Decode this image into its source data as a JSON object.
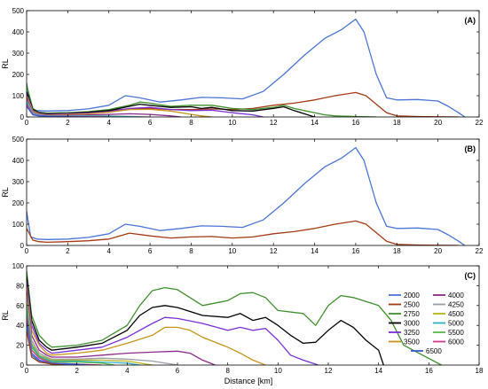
{
  "figure": {
    "xlabel": "Distance [km]"
  },
  "legend": {
    "entries": [
      {
        "label": "2000",
        "color": "#4a75d6"
      },
      {
        "label": "2500",
        "color": "#a33a14"
      },
      {
        "label": "2750",
        "color": "#3f8f2d"
      },
      {
        "label": "3000",
        "color": "#000000"
      },
      {
        "label": "3250",
        "color": "#7a2fd6"
      },
      {
        "label": "3500",
        "color": "#c8941a"
      },
      {
        "label": "4000",
        "color": "#8a2a8a"
      },
      {
        "label": "4250",
        "color": "#9aa0a6"
      },
      {
        "label": "4500",
        "color": "#b9b21e"
      },
      {
        "label": "5000",
        "color": "#30b0c4"
      },
      {
        "label": "5500",
        "color": "#57b84a"
      },
      {
        "label": "6000",
        "color": "#d13a8a"
      },
      {
        "label": "6500",
        "color": "#3a5bd1"
      }
    ]
  },
  "chart_data": [
    {
      "type": "line",
      "panel_label": "(A)",
      "ylabel": "RL",
      "xlim": [
        0,
        22
      ],
      "ylim": [
        0,
        500
      ],
      "xticks": [
        0,
        2,
        4,
        6,
        8,
        10,
        12,
        14,
        16,
        18,
        20,
        22
      ],
      "yticks": [
        0,
        100,
        200,
        300,
        400,
        500
      ],
      "series": [
        {
          "color": "#4a75d6",
          "x": [
            0,
            0.2,
            0.5,
            1,
            2,
            3,
            4,
            4.8,
            5.5,
            6.5,
            7.5,
            8.5,
            9.5,
            10.5,
            11.5,
            12.5,
            13.5,
            14.5,
            15.3,
            16,
            16.4,
            17,
            17.5,
            18,
            19,
            20,
            20.5,
            21,
            21.3
          ],
          "y": [
            160,
            40,
            30,
            28,
            30,
            38,
            55,
            100,
            90,
            70,
            80,
            92,
            90,
            85,
            120,
            200,
            290,
            370,
            410,
            460,
            400,
            200,
            90,
            80,
            82,
            75,
            50,
            20,
            0
          ]
        },
        {
          "color": "#a33a14",
          "x": [
            0,
            0.3,
            0.6,
            1,
            2,
            3,
            4,
            5,
            6,
            7,
            8,
            9,
            10,
            11,
            12,
            13,
            14,
            15,
            16,
            16.5,
            17,
            17.5,
            18,
            19,
            20,
            21
          ],
          "y": [
            80,
            25,
            18,
            15,
            18,
            22,
            30,
            38,
            40,
            35,
            35,
            38,
            35,
            40,
            55,
            65,
            80,
            100,
            115,
            100,
            60,
            20,
            5,
            2,
            1,
            0
          ]
        },
        {
          "color": "#3f8f2d",
          "x": [
            0,
            0.3,
            0.6,
            1,
            2,
            3,
            4,
            5,
            5.5,
            6,
            7,
            8,
            9,
            10,
            11,
            12,
            12.5,
            13,
            14,
            14.5,
            15,
            16,
            17
          ],
          "y": [
            150,
            40,
            22,
            18,
            20,
            25,
            35,
            55,
            70,
            65,
            50,
            55,
            55,
            40,
            35,
            45,
            55,
            40,
            20,
            10,
            5,
            2,
            0
          ]
        },
        {
          "color": "#000000",
          "x": [
            0,
            0.3,
            0.6,
            1,
            2,
            3,
            4,
            5,
            5.5,
            6,
            7,
            8,
            8.5,
            9,
            10,
            11,
            12,
            12.5,
            13,
            13.5,
            14
          ],
          "y": [
            120,
            35,
            20,
            15,
            17,
            22,
            30,
            50,
            60,
            55,
            45,
            48,
            40,
            45,
            30,
            28,
            40,
            48,
            30,
            15,
            0
          ]
        },
        {
          "color": "#7a2fd6",
          "x": [
            0,
            0.3,
            0.6,
            1,
            2,
            3,
            4,
            5,
            6,
            7,
            8,
            9,
            10,
            11,
            11.5
          ],
          "y": [
            110,
            30,
            17,
            12,
            15,
            18,
            25,
            40,
            45,
            35,
            30,
            32,
            20,
            10,
            0
          ]
        },
        {
          "color": "#c8941a",
          "x": [
            0,
            0.3,
            0.6,
            1,
            2,
            3,
            4,
            5,
            6,
            7,
            8,
            8.5,
            9
          ],
          "y": [
            100,
            28,
            15,
            10,
            12,
            15,
            22,
            35,
            36,
            28,
            12,
            5,
            0
          ]
        },
        {
          "color": "#8a2a8a",
          "x": [
            0,
            0.3,
            0.6,
            1,
            2,
            3,
            4,
            5,
            6,
            7,
            7.5
          ],
          "y": [
            90,
            22,
            12,
            8,
            8,
            10,
            12,
            15,
            12,
            5,
            0
          ]
        },
        {
          "color": "#9aa0a6",
          "x": [
            0,
            0.3,
            0.6,
            1,
            2,
            3,
            4,
            5,
            6
          ],
          "y": [
            80,
            20,
            10,
            6,
            6,
            6,
            5,
            3,
            0
          ]
        },
        {
          "color": "#30b0c4",
          "x": [
            0,
            0.3,
            0.6,
            1,
            2,
            3,
            4,
            5,
            5.5
          ],
          "y": [
            70,
            15,
            8,
            5,
            5,
            4,
            3,
            1,
            0
          ]
        },
        {
          "color": "#d13a8a",
          "x": [
            0,
            0.3,
            0.6,
            1,
            2,
            3,
            4
          ],
          "y": [
            60,
            12,
            6,
            4,
            3,
            1,
            0
          ]
        },
        {
          "color": "#3a5bd1",
          "x": [
            0,
            0.3,
            0.6,
            1,
            2,
            3
          ],
          "y": [
            50,
            10,
            5,
            3,
            1,
            0
          ]
        }
      ]
    },
    {
      "type": "line",
      "panel_label": "(B)",
      "ylabel": "RL",
      "xlim": [
        0,
        22
      ],
      "ylim": [
        0,
        500
      ],
      "xticks": [
        0,
        2,
        4,
        6,
        8,
        10,
        12,
        14,
        16,
        18,
        20,
        22
      ],
      "yticks": [
        0,
        100,
        200,
        300,
        400,
        500
      ],
      "series": [
        {
          "color": "#4a75d6",
          "x": [
            0,
            0.2,
            0.5,
            1,
            2,
            3,
            4,
            4.8,
            5.5,
            6.5,
            7.5,
            8.5,
            9.5,
            10.5,
            11.5,
            12.5,
            13.5,
            14.5,
            15.3,
            16,
            16.4,
            17,
            17.5,
            18,
            19,
            20,
            20.5,
            21,
            21.3
          ],
          "y": [
            160,
            40,
            30,
            28,
            30,
            38,
            55,
            100,
            90,
            70,
            80,
            92,
            90,
            85,
            120,
            200,
            290,
            370,
            410,
            460,
            400,
            200,
            90,
            80,
            82,
            75,
            50,
            20,
            0
          ]
        },
        {
          "color": "#a33a14",
          "x": [
            0,
            0.3,
            0.6,
            1,
            2,
            3,
            4,
            5,
            6,
            7,
            8,
            9,
            10,
            11,
            12,
            13,
            14,
            15,
            16,
            16.5,
            17,
            17.5,
            18,
            19,
            20,
            21
          ],
          "y": [
            80,
            25,
            18,
            15,
            18,
            22,
            30,
            58,
            45,
            35,
            40,
            42,
            35,
            40,
            55,
            65,
            80,
            100,
            115,
            100,
            60,
            20,
            5,
            2,
            1,
            0
          ]
        }
      ]
    },
    {
      "type": "line",
      "panel_label": "(C)",
      "ylabel": "RL",
      "xlim": [
        0,
        18
      ],
      "ylim": [
        0,
        100
      ],
      "xticks": [
        0,
        2,
        4,
        6,
        8,
        10,
        12,
        14,
        16,
        18
      ],
      "yticks": [
        0,
        20,
        40,
        60,
        80,
        100
      ],
      "series": [
        {
          "color": "#3f8f2d",
          "x": [
            0,
            0.2,
            0.5,
            0.8,
            1,
            2,
            3,
            4,
            4.5,
            5,
            5.5,
            6,
            7,
            8,
            8.5,
            9,
            9.5,
            10,
            11,
            11.5,
            12,
            12.5,
            13,
            14,
            14.5,
            15,
            16.5
          ],
          "y": [
            95,
            50,
            30,
            22,
            18,
            20,
            25,
            40,
            60,
            75,
            78,
            76,
            60,
            65,
            72,
            73,
            68,
            55,
            52,
            40,
            60,
            70,
            68,
            60,
            45,
            20,
            0
          ]
        },
        {
          "color": "#000000",
          "x": [
            0,
            0.2,
            0.5,
            0.8,
            1,
            2,
            3,
            4,
            4.5,
            5,
            5.5,
            6,
            7,
            8,
            8.5,
            9,
            9.5,
            10,
            10.5,
            11,
            11.5,
            12,
            12.5,
            13,
            13.5,
            14,
            14.2
          ],
          "y": [
            90,
            45,
            25,
            18,
            15,
            18,
            22,
            35,
            50,
            58,
            60,
            58,
            50,
            48,
            52,
            45,
            48,
            40,
            30,
            22,
            23,
            35,
            45,
            38,
            25,
            15,
            0
          ]
        },
        {
          "color": "#7a2fd6",
          "x": [
            0,
            0.2,
            0.5,
            0.8,
            1,
            2,
            3,
            4,
            5,
            5.5,
            6,
            7,
            8,
            8.5,
            9,
            9.5,
            10,
            10.5,
            11,
            11.6
          ],
          "y": [
            85,
            40,
            22,
            15,
            12,
            15,
            18,
            28,
            42,
            48,
            47,
            42,
            35,
            38,
            35,
            37,
            25,
            10,
            5,
            0
          ]
        },
        {
          "color": "#c8941a",
          "x": [
            0,
            0.2,
            0.5,
            0.8,
            1,
            2,
            3,
            4,
            5,
            5.5,
            6,
            6.5,
            7,
            8,
            8.5,
            9,
            9.5
          ],
          "y": [
            80,
            35,
            20,
            12,
            10,
            12,
            15,
            22,
            30,
            38,
            38,
            35,
            28,
            18,
            12,
            5,
            0
          ]
        },
        {
          "color": "#8a2a8a",
          "x": [
            0,
            0.2,
            0.5,
            0.8,
            1,
            2,
            3,
            4,
            5,
            6,
            6.5,
            7,
            7.5
          ],
          "y": [
            75,
            30,
            15,
            10,
            8,
            8,
            10,
            12,
            13,
            14,
            12,
            5,
            0
          ]
        },
        {
          "color": "#9aa0a6",
          "x": [
            0,
            0.2,
            0.5,
            0.8,
            1,
            2,
            3,
            4,
            5,
            6
          ],
          "y": [
            70,
            25,
            12,
            8,
            6,
            6,
            7,
            6,
            4,
            0
          ]
        },
        {
          "color": "#b9b21e",
          "x": [
            0,
            0.2,
            0.5,
            0.8,
            1,
            2,
            3,
            4,
            5
          ],
          "y": [
            65,
            22,
            10,
            7,
            5,
            5,
            5,
            4,
            0
          ]
        },
        {
          "color": "#30b0c4",
          "x": [
            0,
            0.2,
            0.5,
            0.8,
            1,
            2,
            3,
            4,
            4.5
          ],
          "y": [
            60,
            20,
            9,
            6,
            4,
            4,
            3,
            2,
            0
          ]
        },
        {
          "color": "#57b84a",
          "x": [
            0,
            0.2,
            0.5,
            0.8,
            1,
            2,
            3,
            3.5
          ],
          "y": [
            55,
            18,
            8,
            5,
            3,
            3,
            2,
            0
          ]
        },
        {
          "color": "#d13a8a",
          "x": [
            0,
            0.2,
            0.5,
            0.8,
            1,
            2,
            3
          ],
          "y": [
            50,
            15,
            7,
            4,
            2,
            1,
            0
          ]
        },
        {
          "color": "#3a5bd1",
          "x": [
            0,
            0.2,
            0.5,
            0.8,
            1,
            2,
            2.5
          ],
          "y": [
            45,
            12,
            5,
            3,
            2,
            1,
            0
          ]
        },
        {
          "color": "#4a75d6",
          "x": [
            0,
            0.2,
            0.5,
            0.8,
            1,
            2
          ],
          "y": [
            40,
            10,
            4,
            2,
            1,
            0
          ]
        },
        {
          "color": "#a33a14",
          "x": [
            0,
            0.2,
            0.5,
            0.8,
            1,
            1.5
          ],
          "y": [
            35,
            8,
            3,
            2,
            1,
            0
          ]
        }
      ]
    }
  ]
}
